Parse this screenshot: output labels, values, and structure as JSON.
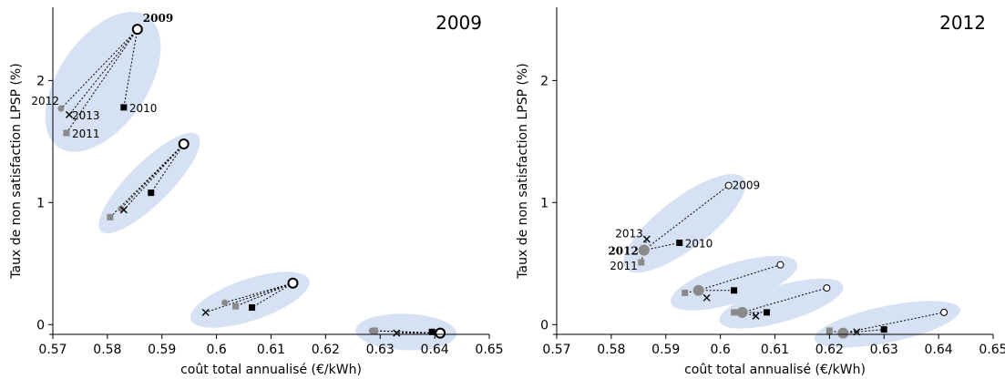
{
  "colors": {
    "cluster_fill": "#d6e2f3",
    "year_2009": "#000000",
    "year_2010": "#000000",
    "year_2011": "#8a8a8a",
    "year_2012": "#8a8a8a",
    "year_2013": "#000000"
  },
  "chart_data": [
    {
      "type": "scatter",
      "title": "2009",
      "xlabel": "",
      "ylabel": "Taux de non satisfaction LPSP (%)",
      "xlim": [
        0.57,
        0.65
      ],
      "ylim": [
        -0.08,
        2.6
      ],
      "xticks": [
        "0.57",
        "0.58",
        "0.59",
        "0.6",
        "0.61",
        "0.62",
        "0.63",
        "0.64",
        "0.65"
      ],
      "yticks": [
        "0",
        "1",
        "2"
      ],
      "reference_year": "2009",
      "clusters": [
        {
          "points": [
            {
              "year": "2009",
              "x": 0.5855,
              "y": 2.42,
              "label": "2009"
            },
            {
              "year": "2010",
              "x": 0.583,
              "y": 1.78,
              "label": "2010"
            },
            {
              "year": "2011",
              "x": 0.5725,
              "y": 1.57,
              "label": "2011"
            },
            {
              "year": "2012",
              "x": 0.5715,
              "y": 1.77,
              "label": "2012"
            },
            {
              "year": "2013",
              "x": 0.573,
              "y": 1.72,
              "label": "2013"
            }
          ]
        },
        {
          "points": [
            {
              "year": "2009",
              "x": 0.594,
              "y": 1.48
            },
            {
              "year": "2010",
              "x": 0.588,
              "y": 1.08
            },
            {
              "year": "2011",
              "x": 0.5805,
              "y": 0.88
            },
            {
              "year": "2012",
              "x": 0.5825,
              "y": 0.95
            },
            {
              "year": "2013",
              "x": 0.583,
              "y": 0.94
            }
          ]
        },
        {
          "points": [
            {
              "year": "2009",
              "x": 0.614,
              "y": 0.34
            },
            {
              "year": "2010",
              "x": 0.6065,
              "y": 0.14
            },
            {
              "year": "2011",
              "x": 0.6035,
              "y": 0.15
            },
            {
              "year": "2012",
              "x": 0.6015,
              "y": 0.18
            },
            {
              "year": "2013",
              "x": 0.598,
              "y": 0.1
            }
          ]
        },
        {
          "points": [
            {
              "year": "2009",
              "x": 0.641,
              "y": -0.07
            },
            {
              "year": "2010",
              "x": 0.6395,
              "y": -0.06
            },
            {
              "year": "2011",
              "x": 0.629,
              "y": -0.05
            },
            {
              "year": "2012",
              "x": 0.6285,
              "y": -0.05
            },
            {
              "year": "2013",
              "x": 0.633,
              "y": -0.07
            }
          ]
        }
      ]
    },
    {
      "type": "scatter",
      "title": "2012",
      "xlabel": "coût total annualisé (€/kWh)",
      "ylabel": "Taux de non satisfaction LPSP (%)",
      "xlim": [
        0.57,
        0.65
      ],
      "ylim": [
        -0.08,
        2.6
      ],
      "xticks": [
        "0.57",
        "0.58",
        "0.59",
        "0.6",
        "0.61",
        "0.62",
        "0.63",
        "0.64",
        "0.65"
      ],
      "yticks": [
        "0",
        "1",
        "2"
      ],
      "reference_year": "2012",
      "clusters": [
        {
          "points": [
            {
              "year": "2012",
              "x": 0.586,
              "y": 0.61,
              "label": "2012"
            },
            {
              "year": "2009",
              "x": 0.6015,
              "y": 1.14,
              "label": "2009"
            },
            {
              "year": "2010",
              "x": 0.5925,
              "y": 0.67,
              "label": "2010"
            },
            {
              "year": "2011",
              "x": 0.5855,
              "y": 0.51,
              "label": "2011"
            },
            {
              "year": "2013",
              "x": 0.5865,
              "y": 0.7,
              "label": "2013"
            }
          ]
        },
        {
          "points": [
            {
              "year": "2012",
              "x": 0.596,
              "y": 0.28
            },
            {
              "year": "2009",
              "x": 0.611,
              "y": 0.49
            },
            {
              "year": "2010",
              "x": 0.6025,
              "y": 0.28
            },
            {
              "year": "2011",
              "x": 0.5935,
              "y": 0.26
            },
            {
              "year": "2013",
              "x": 0.5975,
              "y": 0.22
            }
          ]
        },
        {
          "points": [
            {
              "year": "2012",
              "x": 0.604,
              "y": 0.1
            },
            {
              "year": "2009",
              "x": 0.6195,
              "y": 0.3
            },
            {
              "year": "2010",
              "x": 0.6085,
              "y": 0.1
            },
            {
              "year": "2011",
              "x": 0.6025,
              "y": 0.1
            },
            {
              "year": "2013",
              "x": 0.6065,
              "y": 0.07
            }
          ]
        },
        {
          "points": [
            {
              "year": "2012",
              "x": 0.6225,
              "y": -0.07
            },
            {
              "year": "2009",
              "x": 0.641,
              "y": 0.1
            },
            {
              "year": "2010",
              "x": 0.63,
              "y": -0.04
            },
            {
              "year": "2011",
              "x": 0.62,
              "y": -0.05
            },
            {
              "year": "2013",
              "x": 0.625,
              "y": -0.06
            }
          ]
        }
      ]
    }
  ]
}
